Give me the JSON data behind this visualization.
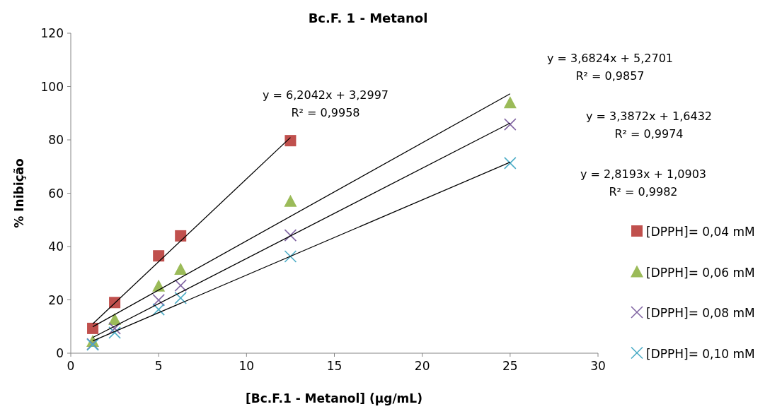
{
  "chart_data": {
    "type": "scatter",
    "title": "Bc.F. 1 - Metanol",
    "xlabel": "[Bc.F.1 - Metanol] (µg/mL)",
    "ylabel": "% Inibição",
    "xlim": [
      0,
      30
    ],
    "xticks": [
      0,
      5,
      10,
      15,
      20,
      25,
      30
    ],
    "ylim": [
      0,
      120
    ],
    "yticks": [
      0,
      20,
      40,
      60,
      80,
      100,
      120
    ],
    "grid": false,
    "legend": "right",
    "series": [
      {
        "name": "[DPPH]= 0,04 mM",
        "color": "#c0504d",
        "marker": "square",
        "x": [
          1.25,
          2.5,
          5,
          6.25,
          12.5
        ],
        "values": [
          9.3,
          19,
          36.5,
          44,
          79.7
        ]
      },
      {
        "name": "[DPPH]= 0,06 mM",
        "color": "#9bbb59",
        "marker": "triangle",
        "x": [
          1.25,
          2.5,
          5,
          6.25,
          12.5,
          25
        ],
        "values": [
          4.5,
          12.7,
          25.2,
          31.5,
          57,
          94
        ]
      },
      {
        "name": "[DPPH]= 0,08 mM",
        "color": "#8064a2",
        "marker": "cross",
        "x": [
          1.25,
          2.5,
          5,
          6.25,
          12.5,
          25
        ],
        "values": [
          3.4,
          9.3,
          19.9,
          25.4,
          44.2,
          85.8
        ]
      },
      {
        "name": "[DPPH]= 0,10 mM",
        "color": "#4bacc6",
        "marker": "cross",
        "x": [
          1.25,
          2.5,
          5,
          6.25,
          12.5,
          25
        ],
        "values": [
          3.2,
          7.7,
          16.4,
          20.7,
          36.3,
          71.3
        ]
      },
      {
        "type": "line",
        "color": "#000000",
        "marker": "none",
        "x": [
          1.25,
          12.5
        ],
        "values": [
          11,
          80.9
        ]
      },
      {
        "type": "line",
        "color": "#000000",
        "marker": "none",
        "x": [
          1.25,
          25
        ],
        "values": [
          9.9,
          97.3
        ]
      },
      {
        "type": "line",
        "color": "#000000",
        "marker": "none",
        "x": [
          1.25,
          25
        ],
        "values": [
          5.9,
          86.3
        ]
      },
      {
        "type": "line",
        "color": "#000000",
        "marker": "none",
        "x": [
          1.25,
          25
        ],
        "values": [
          4.6,
          71.6
        ]
      }
    ],
    "annotations": [
      "y = 6,2042x + 3,2997\nR² = 0,9958",
      "y = 3,6824x + 5,2701\nR² = 0,9857",
      "y = 3,3872x + 1,6432\nR² = 0,9974",
      "y = 2,8193x + 1,0903\nR² = 0,9982"
    ]
  }
}
